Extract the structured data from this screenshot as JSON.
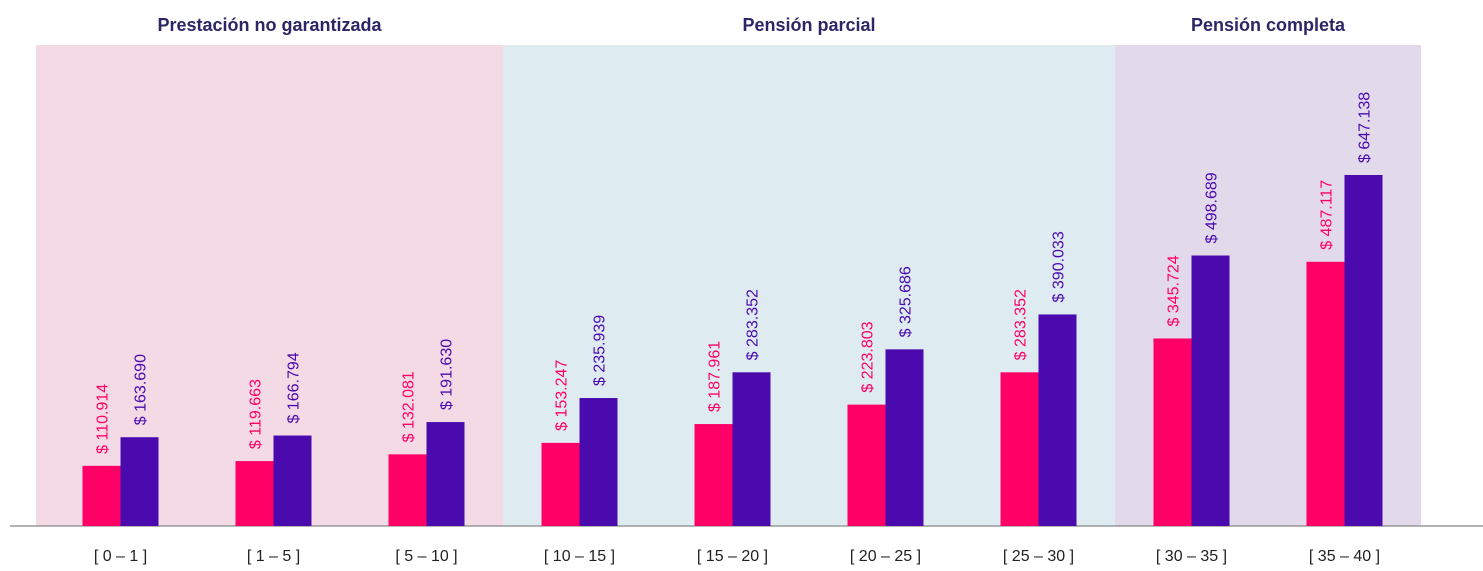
{
  "chart_data": {
    "type": "bar",
    "groups": [
      {
        "label": "Prestación no garantizada",
        "color": "#f4dae5",
        "categories": [
          "[ 0 – 1 ]",
          "[ 1 – 5 ]",
          "[ 5 – 10 ]"
        ]
      },
      {
        "label": "Pensión parcial",
        "color": "#deecf1",
        "categories": [
          "[ 10 – 15 ]",
          "[ 15 – 20 ]",
          "[ 20 – 25 ]",
          "[ 25 – 30 ]"
        ]
      },
      {
        "label": "Pensión completa",
        "color": "#e2d9ea",
        "categories": [
          "[ 30 – 35 ]",
          "[ 35 – 40 ]"
        ]
      }
    ],
    "series": [
      {
        "color": "#ff0066",
        "values": [
          110914,
          119663,
          132081,
          153247,
          187961,
          223803,
          283352,
          345724,
          487117
        ],
        "value_labels": [
          "$ 110.914",
          "$ 119.663",
          "$ 132.081",
          "$ 153.247",
          "$ 187.961",
          "$ 223.803",
          "$ 283.352",
          "$ 345.724",
          "$ 487.117"
        ]
      },
      {
        "color": "#4a0aad",
        "values": [
          163690,
          166794,
          191630,
          235939,
          283352,
          325686,
          390033,
          498689,
          647138
        ],
        "value_labels": [
          "$ 163.690",
          "$ 166.794",
          "$ 191.630",
          "$ 235.939",
          "$ 283.352",
          "$ 325.686",
          "$ 390.033",
          "$ 498.689",
          "$ 647.138"
        ]
      }
    ]
  }
}
